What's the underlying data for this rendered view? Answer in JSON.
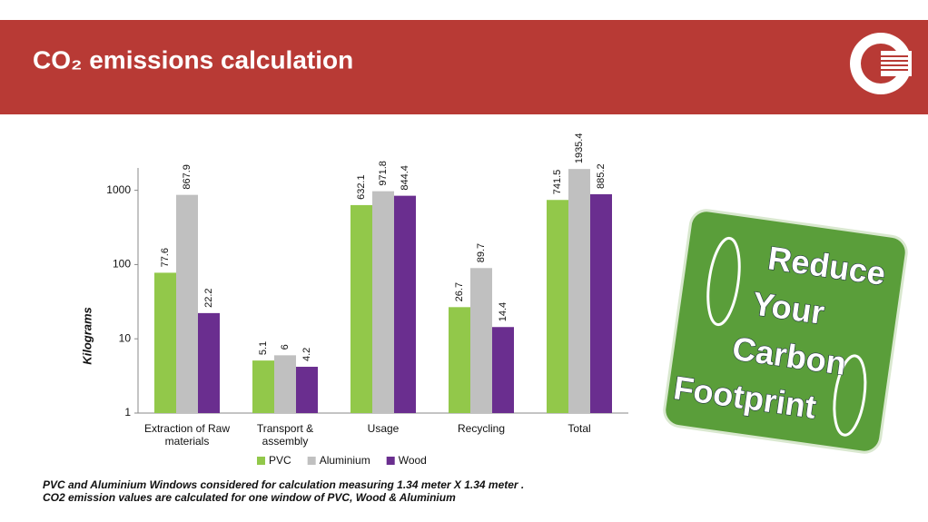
{
  "slide": {
    "title": "CO₂ emissions calculation",
    "footnote": [
      "PVC and Aluminium Windows considered for calculation measuring 1.34 meter X 1.34 meter .",
      "CO2 emission values are calculated for one window  of PVC, Wood & Aluminium"
    ],
    "badge": [
      "Reduce",
      "Your",
      "Carbon",
      "Footprint"
    ]
  },
  "chart_data": {
    "type": "bar",
    "log": true,
    "ylabel": "Kilograms",
    "categories": [
      "Extraction of Raw materials",
      "Transport & assembly",
      "Usage",
      "Recycling",
      "Total"
    ],
    "series": [
      {
        "name": "PVC",
        "color": "#92c84a",
        "values": [
          77.6,
          5.1,
          632.1,
          26.7,
          741.5
        ]
      },
      {
        "name": "Aluminium",
        "color": "#c0c0c0",
        "values": [
          867.9,
          6,
          971.8,
          89.7,
          1935.4
        ]
      },
      {
        "name": "Wood",
        "color": "#6a2e8f",
        "values": [
          22.2,
          4.2,
          844.4,
          14.4,
          885.2
        ]
      }
    ],
    "ylim": [
      1,
      2000
    ],
    "yticks": [
      1,
      10,
      100,
      1000
    ],
    "legend": "bottom"
  }
}
